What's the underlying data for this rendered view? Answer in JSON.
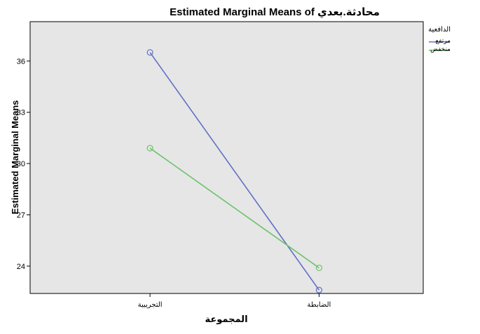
{
  "chart_data": {
    "type": "line",
    "title": "Estimated Marginal Means of محادثة.بعدي",
    "xlabel": "المجموعة",
    "ylabel": "Estimated Marginal Means",
    "categories": [
      "التجريبية",
      "الضابطة"
    ],
    "yticks": [
      24,
      27,
      30,
      33,
      36
    ],
    "ylim": [
      22.4,
      38.3
    ],
    "legend_title": "الدافعية",
    "legend_position": "top-right",
    "grid": false,
    "series": [
      {
        "name": "مرتفع",
        "values": [
          36.5,
          22.6
        ],
        "color": "#6070c8"
      },
      {
        "name": "منخفض",
        "values": [
          30.9,
          23.9
        ],
        "color": "#6cc36a"
      }
    ],
    "colors": {
      "plot_background": "#e6e6e6",
      "axis": "#000000"
    }
  }
}
